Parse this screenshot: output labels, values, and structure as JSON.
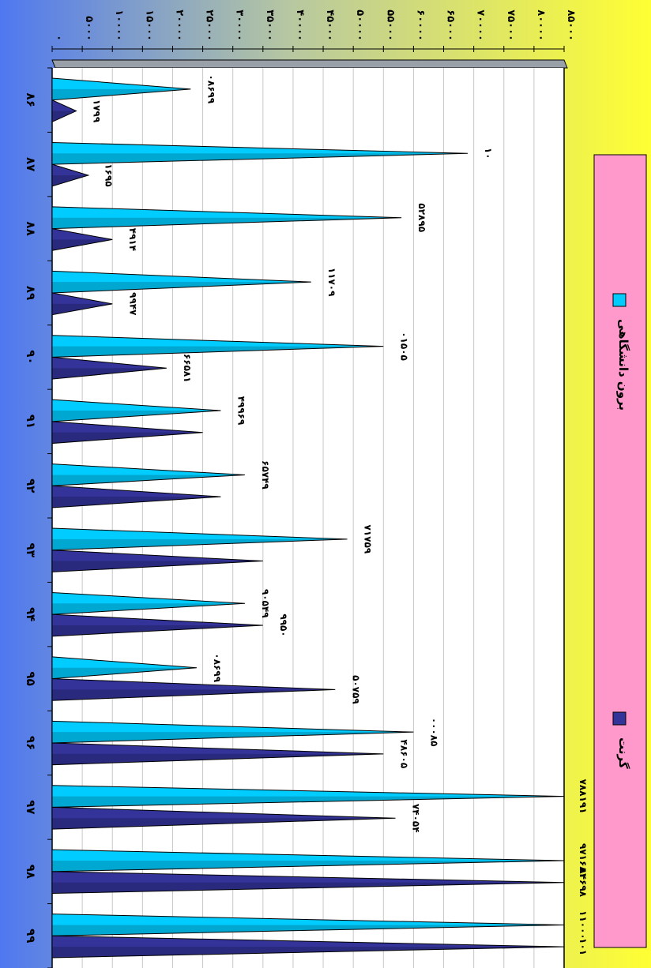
{
  "colors": {
    "background_left": "#4f78f0",
    "background_right": "#ffff33",
    "plot_bg": "#ffffff",
    "grid": "#c8c8c8",
    "legend_bg": "#ff99cc",
    "series_outside_university": "#00ccff",
    "series_grant": "#333399"
  },
  "legend": {
    "items": [
      {
        "label": "برون دانشگاهی",
        "color": "#00ccff"
      },
      {
        "label": "گرنت",
        "color": "#333399"
      }
    ]
  },
  "chart_data": {
    "type": "bar",
    "orientation": "horizontal",
    "grid": true,
    "legend_placement": "right",
    "categories": [
      "۸۶",
      "۸۷",
      "۸۸",
      "۸۹",
      "۹۰",
      "۹۱",
      "۹۲",
      "۹۳",
      "۹۴",
      "۹۵",
      "۹۶",
      "۹۷",
      "۹۸",
      "۹۹"
    ],
    "series": [
      {
        "name": "برون دانشگاهی",
        "values": [
          23000,
          69000,
          58000,
          43000,
          55000,
          28000,
          32000,
          49000,
          32000,
          24000,
          60000,
          1000000,
          1000000,
          1000000
        ],
        "labels": [
          "۰۸۶۹۹",
          "۱۰",
          "۵۲۸۹۵",
          "۱۱۷۰۹",
          "۰۱۵۰۵",
          "۴۹۹۶۹",
          "۶۵۷۴۹",
          "۷۱۷۵۹",
          "۹۰۵۴۹",
          "۰۸۶۹۹",
          "۰۰۰۸۵",
          "۷۸۸۱۹۱",
          "۹۷۱۶۸۱",
          "۱۱۰۰۰"
        ]
      },
      {
        "name": "گرنت",
        "values": [
          4000,
          6000,
          10000,
          10000,
          19000,
          25000,
          28000,
          35000,
          35000,
          47000,
          55000,
          57000,
          88000,
          1000000
        ],
        "labels": [
          "۱۷۹۹",
          "۱۶۹۵",
          "۴۹۱۴",
          "۹۹۴۷",
          "۶۶۵۸۱",
          "",
          "",
          "",
          "۹۹۵۰",
          "۵۰۷۵۹",
          "۴۸۶۰۵",
          "۷۴۰۵۴",
          "۸۴۶۹۸",
          "۱۰۱"
        ]
      }
    ],
    "axis": {
      "min": 0,
      "max": 85000,
      "clip_max": 85000,
      "ticks": [
        0,
        5000,
        10000,
        15000,
        20000,
        25000,
        30000,
        35000,
        40000,
        45000,
        50000,
        55000,
        60000,
        65000,
        70000,
        75000,
        80000,
        85000
      ],
      "tick_labels": [
        "۰",
        "۵۰۰۰",
        "۱۰۰۰۰",
        "۱۵۰۰۰",
        "۲۰۰۰۰",
        "۲۵۰۰۰",
        "۳۰۰۰۰",
        "۳۵۰۰۰",
        "۴۰۰۰۰",
        "۴۵۰۰۰",
        "۵۰۰۰۰",
        "۵۵۰۰۰",
        "۶۰۰۰۰",
        "۶۵۰۰۰",
        "۷۰۰۰۰",
        "۷۵۰۰۰",
        "۸۰۰۰۰",
        "۸۵۰۰۰"
      ]
    }
  }
}
